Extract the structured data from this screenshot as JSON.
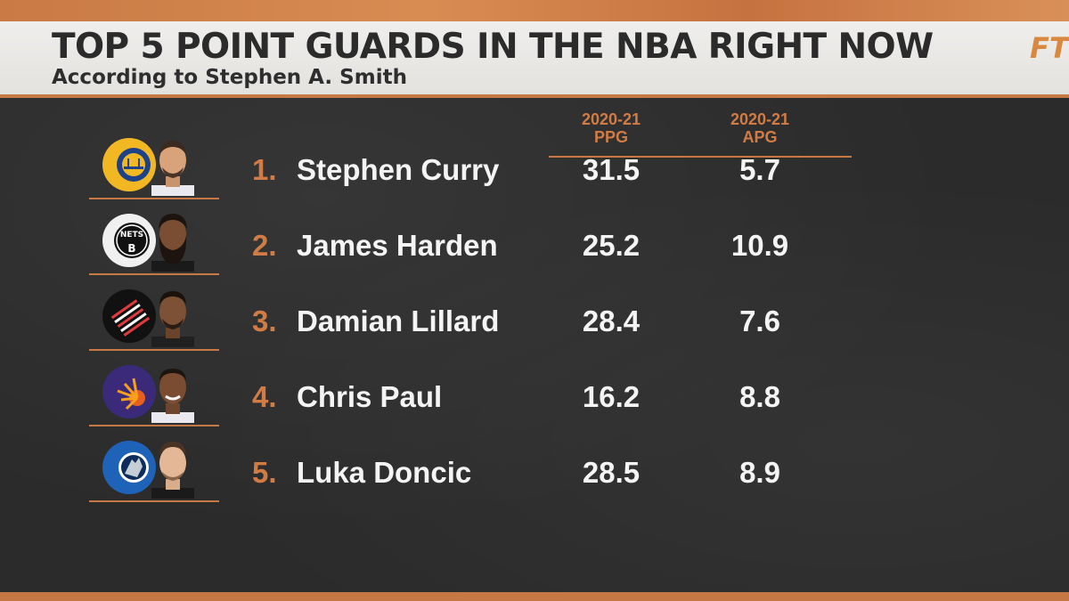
{
  "header": {
    "title": "TOP 5 POINT GUARDS IN THE NBA RIGHT NOW",
    "subtitle": "According to Stephen A. Smith",
    "brand": "FT"
  },
  "columns": {
    "ppg": {
      "season": "2020-21",
      "label": "PPG"
    },
    "apg": {
      "season": "2020-21",
      "label": "APG"
    }
  },
  "rows": [
    {
      "rank": "1.",
      "name": "Stephen Curry",
      "ppg": "31.5",
      "apg": "5.7",
      "team_logo": "warriors-logo-icon",
      "team_color": "#f2b824"
    },
    {
      "rank": "2.",
      "name": "James Harden",
      "ppg": "25.2",
      "apg": "10.9",
      "team_logo": "nets-logo-icon",
      "team_color": "#f0f0f0"
    },
    {
      "rank": "3.",
      "name": "Damian Lillard",
      "ppg": "28.4",
      "apg": "7.6",
      "team_logo": "trail-blazers-logo-icon",
      "team_color": "#111111"
    },
    {
      "rank": "4.",
      "name": "Chris Paul",
      "ppg": "16.2",
      "apg": "8.8",
      "team_logo": "suns-logo-icon",
      "team_color": "#3b2a7a"
    },
    {
      "rank": "5.",
      "name": "Luka Doncic",
      "ppg": "28.5",
      "apg": "8.9",
      "team_logo": "mavericks-logo-icon",
      "team_color": "#1f63b8"
    }
  ],
  "colors": {
    "accent": "#d27c45",
    "board": "#2b2b2b",
    "header_bg": "#e8e7e4"
  }
}
